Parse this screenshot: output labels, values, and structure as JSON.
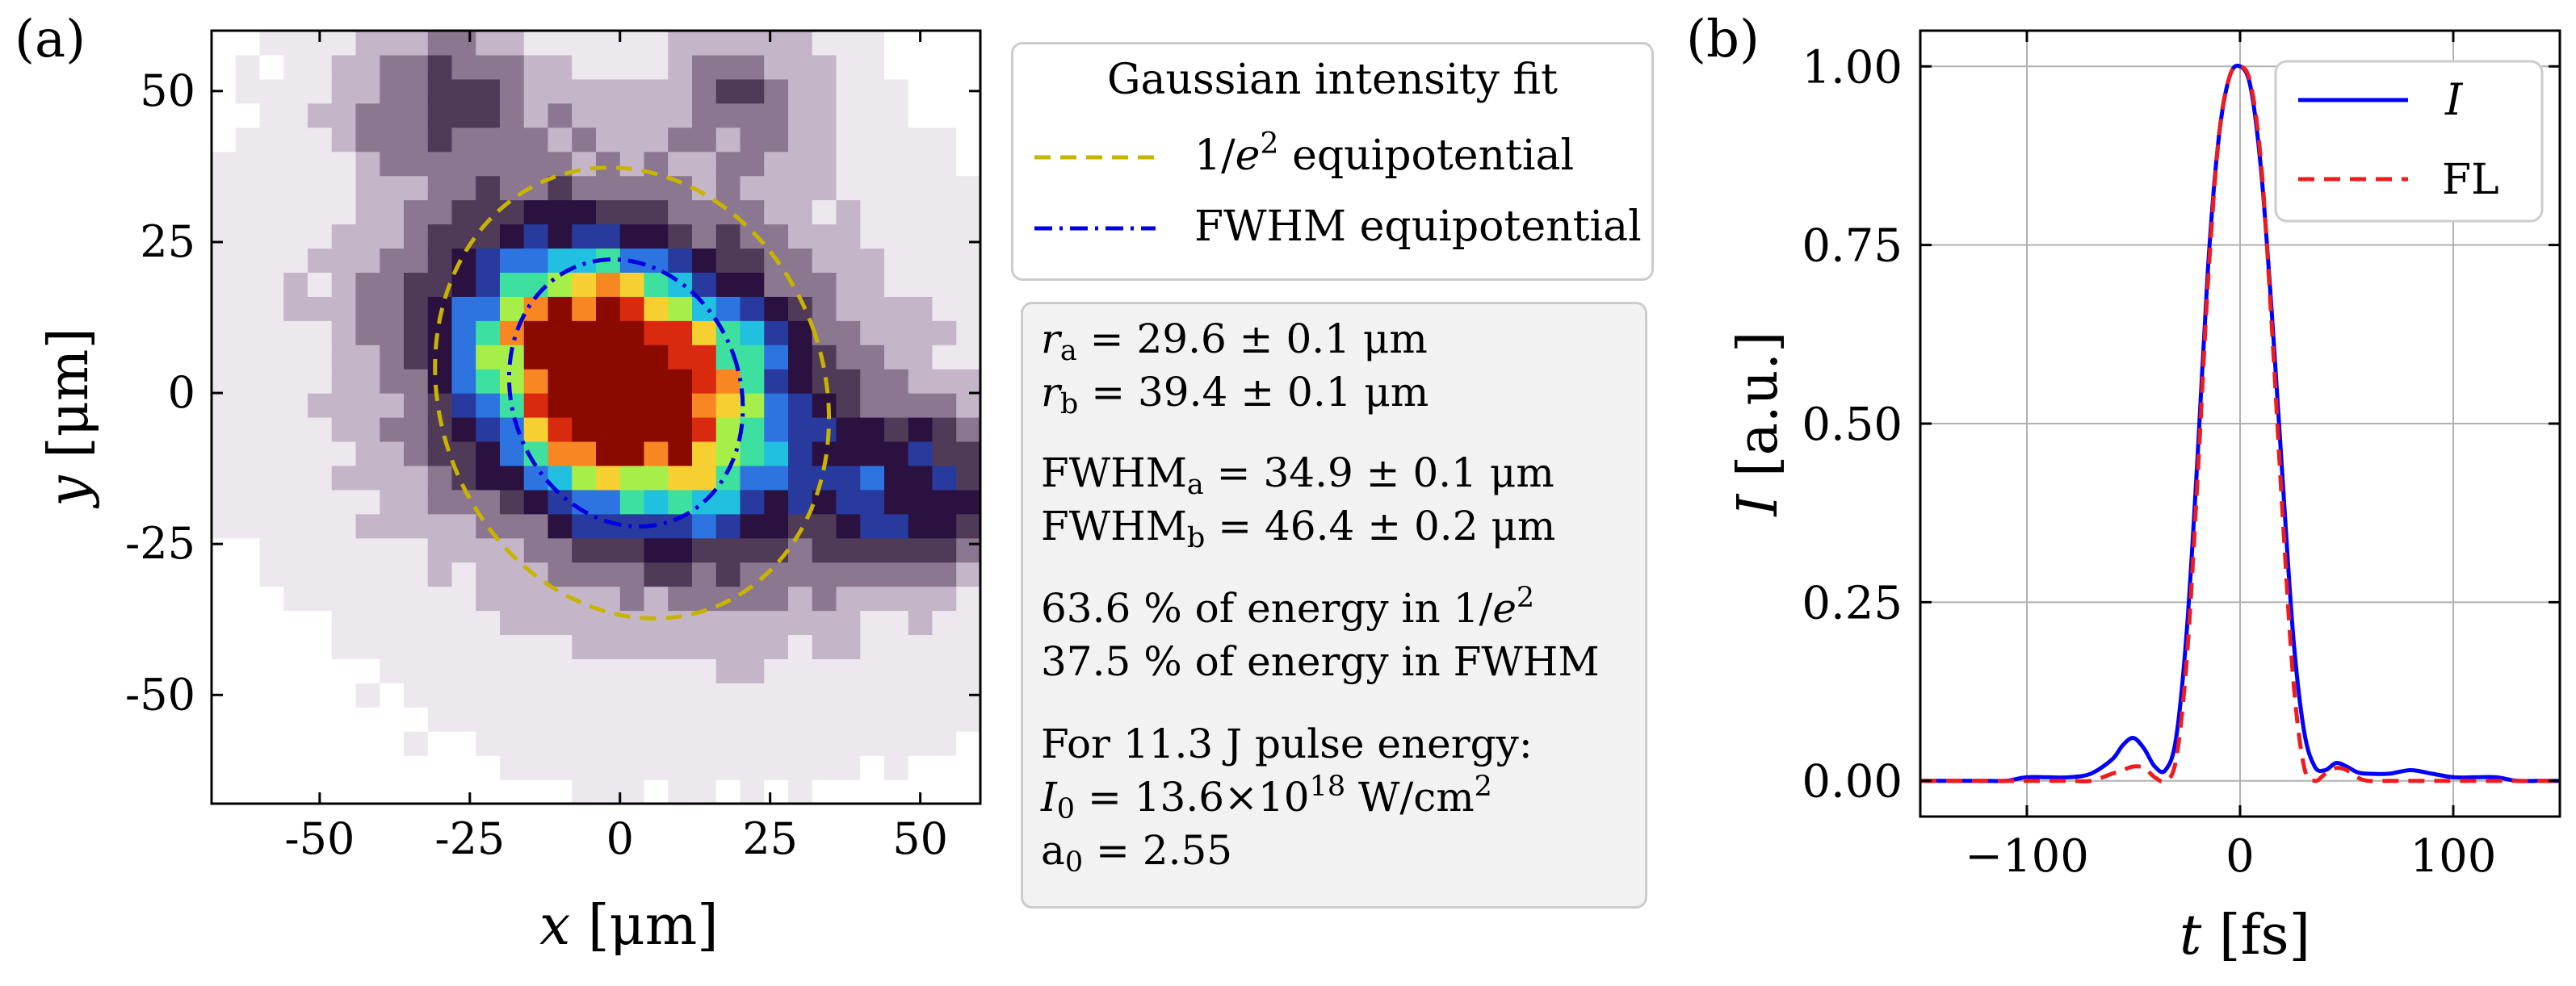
{
  "panel_a": {
    "label": "(a)",
    "legend": {
      "title": "Gaussian intensity fit",
      "items": [
        {
          "label_pre": "1/",
          "label_var": "e",
          "label_sup": "2",
          "label_post": " equipotential",
          "color": "#c8b400",
          "style": "dashed"
        },
        {
          "label": "FWHM equipotential",
          "color": "#0000e0",
          "style": "dashdot"
        }
      ]
    },
    "fit_results": {
      "ra": {
        "var": "r",
        "sub": "a",
        "text": " = 29.6 ± 0.1 μm"
      },
      "rb": {
        "var": "r",
        "sub": "b",
        "text": " = 39.4 ± 0.1 μm"
      },
      "fwhm_a": {
        "name": "FWHM",
        "sub": "a",
        "text": " = 34.9 ± 0.1 μm"
      },
      "fwhm_b": {
        "name": "FWHM",
        "sub": "b",
        "text": " = 46.4 ± 0.2 μm"
      },
      "energy_e2": {
        "pre": "63.6 % of energy in 1/",
        "var": "e",
        "sup": "2"
      },
      "energy_fwhm": "37.5 % of energy in FWHM",
      "pulse": "For 11.3 J pulse energy:",
      "I0": {
        "var": "I",
        "sub": "0",
        "mid": " = 13.6×10",
        "sup": "18",
        "post": " W/cm",
        "sup2": "2"
      },
      "a0": {
        "name": "a",
        "sub": "0",
        "text": " = 2.55"
      }
    }
  },
  "panel_b": {
    "label": "(b)"
  },
  "chart_data": [
    {
      "type": "heatmap",
      "title": "",
      "xlabel_var": "x",
      "xlabel_unit": "[μm]",
      "ylabel_var": "y",
      "ylabel_unit": "[μm]",
      "xlim": [
        -68,
        60
      ],
      "ylim": [
        -68,
        60
      ],
      "xticks": [
        -50,
        -25,
        0,
        25,
        50
      ],
      "xtick_labels": [
        "-50",
        "-25",
        "0",
        "25",
        "50"
      ],
      "yticks": [
        50,
        25,
        0,
        -25,
        -50
      ],
      "ytick_labels": [
        "50",
        "25",
        "0",
        "-25",
        "-50"
      ],
      "pixel_size_um": 4,
      "colormap": [
        "#ffffff",
        "#ede8ee",
        "#c4b6c8",
        "#8c7791",
        "#4f3a57",
        "#2b1140",
        "#283a9e",
        "#2d74e0",
        "#21c0e0",
        "#3ee0a0",
        "#a6ef48",
        "#f6d030",
        "#f88622",
        "#d92a10",
        "#8b0a00"
      ],
      "components": [
        {
          "name": "main_spot",
          "amplitude": 1.0,
          "cx": 0,
          "cy": 2,
          "sa": 12.5,
          "sb": 17,
          "angle_deg": 60
        },
        {
          "name": "halo",
          "amplitude": 0.22,
          "cx": 3,
          "cy": 0,
          "sa": 30,
          "sb": 40,
          "angle_deg": 60
        },
        {
          "name": "lobe_right",
          "amplitude": 0.28,
          "cx": 50,
          "cy": -16,
          "sa": 9,
          "sb": 12,
          "angle_deg": 90
        },
        {
          "name": "lobe_top_left",
          "amplitude": 0.18,
          "cx": -30,
          "cy": 50,
          "sa": 12,
          "sb": 9,
          "angle_deg": 0
        },
        {
          "name": "lobe_top_right",
          "amplitude": 0.16,
          "cx": 22,
          "cy": 50,
          "sa": 10,
          "sb": 8,
          "angle_deg": 0
        },
        {
          "name": "background",
          "amplitude": 0.07,
          "cx": 0,
          "cy": 0,
          "sa": 70,
          "sb": 70,
          "angle_deg": 0
        }
      ],
      "ellipses": [
        {
          "name": "1/e2 equipotential",
          "cx": 2,
          "cy": 0,
          "rx": 32,
          "ry": 38,
          "rotation_deg": -20,
          "color": "#c8b400",
          "style": "dashed"
        },
        {
          "name": "FWHM equipotential",
          "cx": 1,
          "cy": 0,
          "rx": 19,
          "ry": 22.5,
          "rotation_deg": -20,
          "color": "#0000e0",
          "style": "dashdot"
        }
      ]
    },
    {
      "type": "line",
      "title": "",
      "xlabel_var": "t",
      "xlabel_unit": "[fs]",
      "ylabel_var": "I",
      "ylabel_unit": "[a.u.]",
      "xlim": [
        -150,
        150
      ],
      "ylim": [
        -0.05,
        1.05
      ],
      "xticks": [
        -100,
        0,
        100
      ],
      "xtick_labels": [
        "−100",
        "0",
        "100"
      ],
      "yticks": [
        0,
        0.25,
        0.5,
        0.75,
        1.0
      ],
      "ytick_labels": [
        "0.00",
        "0.25",
        "0.50",
        "0.75",
        "1.00"
      ],
      "grid": true,
      "legend_position": "top-right",
      "series": [
        {
          "name": "I",
          "italic": true,
          "color": "#0000ff",
          "style": "solid",
          "x": [
            -150,
            -140,
            -130,
            -120,
            -110,
            -100,
            -90,
            -80,
            -70,
            -60,
            -55,
            -50,
            -45,
            -40,
            -35,
            -30,
            -25,
            -20,
            -15,
            -10,
            -5,
            0,
            5,
            10,
            15,
            20,
            25,
            30,
            35,
            40,
            45,
            50,
            55,
            60,
            70,
            80,
            90,
            100,
            110,
            120,
            130,
            140,
            150
          ],
          "y": [
            0.0,
            0.0,
            0.0,
            0.0,
            0.0,
            0.005,
            0.005,
            0.005,
            0.01,
            0.03,
            0.05,
            0.06,
            0.045,
            0.02,
            0.015,
            0.06,
            0.21,
            0.45,
            0.72,
            0.9,
            0.985,
            1.0,
            0.97,
            0.85,
            0.65,
            0.42,
            0.2,
            0.07,
            0.02,
            0.015,
            0.025,
            0.02,
            0.012,
            0.01,
            0.01,
            0.015,
            0.01,
            0.005,
            0.005,
            0.005,
            0.0,
            0.0,
            0.0
          ]
        },
        {
          "name": "FL",
          "italic": false,
          "color": "#ee1c1c",
          "style": "dashed",
          "x": [
            -150,
            -140,
            -130,
            -120,
            -110,
            -100,
            -90,
            -80,
            -70,
            -60,
            -55,
            -50,
            -45,
            -40,
            -35,
            -30,
            -25,
            -20,
            -15,
            -10,
            -5,
            0,
            5,
            10,
            15,
            20,
            25,
            30,
            35,
            40,
            45,
            50,
            55,
            60,
            70,
            80,
            90,
            100,
            110,
            120,
            130,
            140,
            150
          ],
          "y": [
            0.0,
            0.0,
            0.0,
            0.0,
            0.0,
            0.0,
            0.0,
            0.0,
            0.0,
            0.01,
            0.015,
            0.02,
            0.018,
            0.005,
            0.0,
            0.03,
            0.17,
            0.42,
            0.7,
            0.9,
            0.985,
            1.0,
            0.975,
            0.86,
            0.63,
            0.37,
            0.14,
            0.02,
            0.0,
            0.01,
            0.018,
            0.015,
            0.005,
            0.0,
            0.0,
            0.0,
            0.0,
            0.0,
            0.0,
            0.0,
            0.0,
            0.0,
            0.0
          ]
        }
      ]
    }
  ]
}
